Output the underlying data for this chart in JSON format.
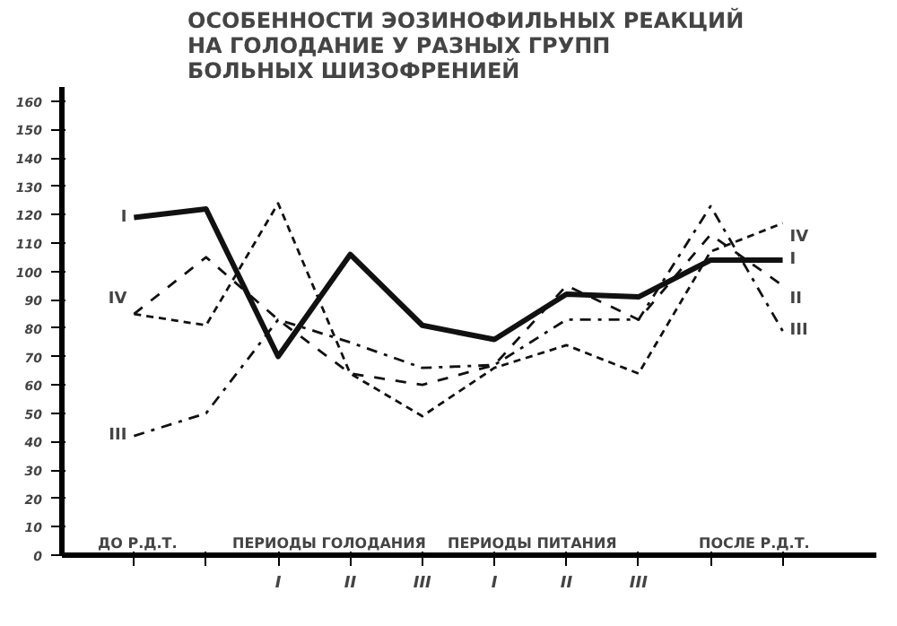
{
  "chart_data": {
    "type": "line",
    "title": "ОСОБЕННОСТИ ЭОЗИНОФИЛЬНЫХ РЕАКЦИЙ\nНА ГОЛОДАНИЕ У РАЗНЫХ ГРУПП\nБОЛЬНЫХ ШИЗОФРЕНИЕЙ",
    "series": [
      {
        "name": "I",
        "color": "#111111",
        "line_style": "solid",
        "values": [
          119,
          122,
          70,
          106,
          81,
          76,
          92,
          91,
          104,
          104
        ]
      },
      {
        "name": "II",
        "color": "#111111",
        "line_style": "dashed",
        "values": [
          85,
          105,
          83,
          64,
          60,
          67,
          95,
          83,
          113,
          95
        ]
      },
      {
        "name": "III",
        "color": "#111111",
        "line_style": "dashdot",
        "values": [
          42,
          50,
          83,
          75,
          66,
          67,
          83,
          83,
          123,
          79
        ]
      },
      {
        "name": "IV",
        "color": "#111111",
        "line_style": "dotted",
        "values": [
          85,
          81,
          124,
          64,
          49,
          66,
          74,
          64,
          107,
          117
        ]
      }
    ],
    "categories": [
      null,
      null,
      "I",
      "II",
      "III",
      "I",
      "II",
      "III",
      null,
      null
    ],
    "ylim": [
      0,
      165
    ],
    "yticks": [
      0,
      10,
      20,
      30,
      40,
      50,
      60,
      70,
      80,
      90,
      100,
      110,
      120,
      130,
      140,
      150,
      160
    ],
    "annotations": [
      "ДО Р.Д.Т.",
      "ПЕРИОДЫ ГОЛОДАНИЯ",
      "ПЕРИОДЫ ПИТАНИЯ",
      "ПОСЛЕ Р.Д.Т."
    ],
    "grid": false,
    "marker": "none"
  }
}
